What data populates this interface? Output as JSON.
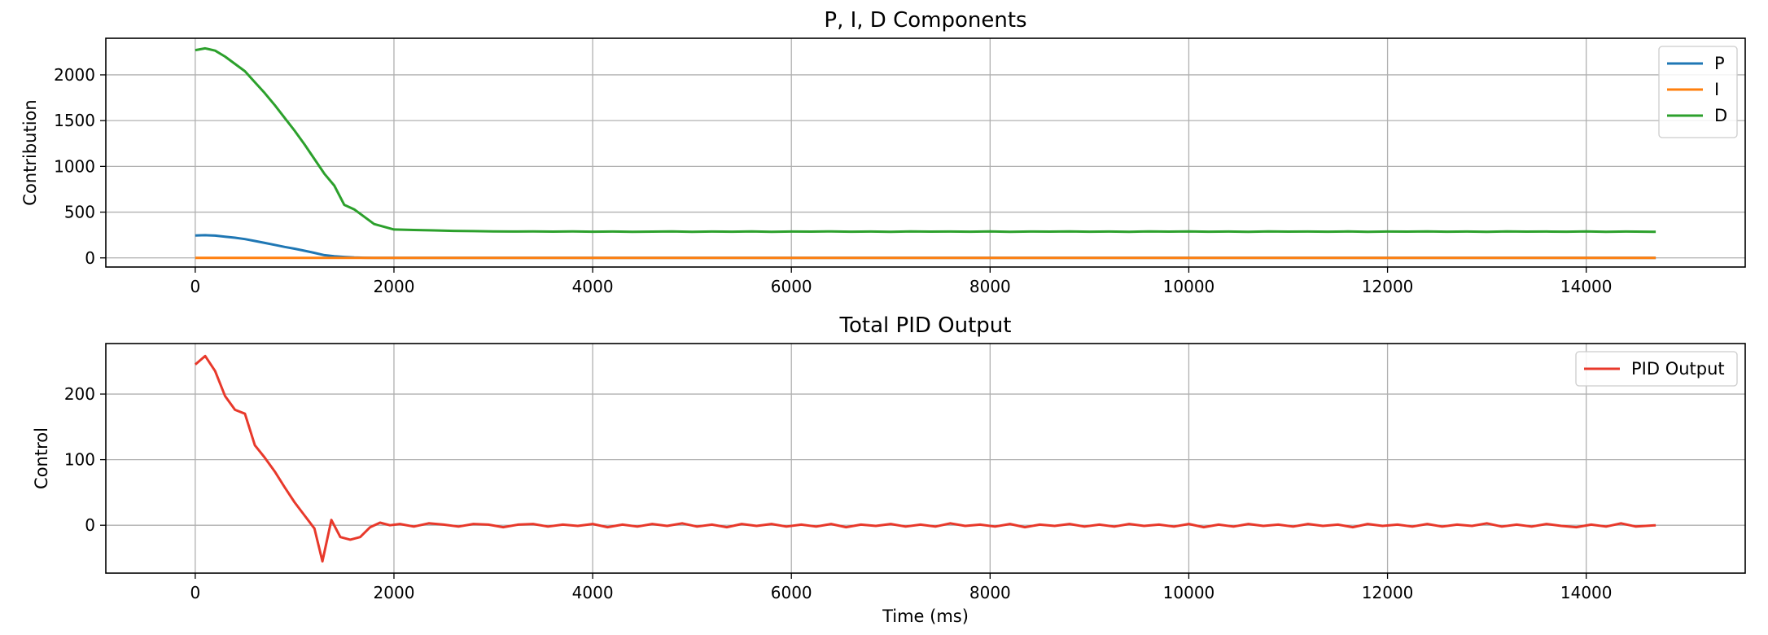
{
  "chart_data": [
    {
      "type": "line",
      "title": "P, I, D Components",
      "xlabel": "",
      "ylabel": "Contribution",
      "xlim": [
        -900,
        15600
      ],
      "ylim": [
        -100,
        2400
      ],
      "xticks": [
        0,
        2000,
        4000,
        6000,
        8000,
        10000,
        12000,
        14000
      ],
      "yticks": [
        0,
        500,
        1000,
        1500,
        2000
      ],
      "grid": true,
      "legend": "top-right",
      "series": [
        {
          "name": "P",
          "color": "#1f77b4",
          "x": [
            0,
            100,
            200,
            300,
            400,
            500,
            600,
            700,
            800,
            900,
            1000,
            1100,
            1200,
            1300,
            1400,
            1500,
            1600,
            1700,
            1800,
            2000,
            4000,
            6000,
            8000,
            10000,
            12000,
            14000,
            14700
          ],
          "y": [
            245,
            248,
            243,
            232,
            220,
            205,
            185,
            163,
            142,
            120,
            100,
            78,
            55,
            30,
            18,
            10,
            4,
            1,
            0,
            0,
            0,
            0,
            0,
            0,
            0,
            0,
            0
          ]
        },
        {
          "name": "I",
          "color": "#ff7f0e",
          "x": [
            0,
            2000,
            4000,
            6000,
            8000,
            10000,
            12000,
            14000,
            14700
          ],
          "y": [
            0,
            0,
            0,
            0,
            0,
            0,
            0,
            0,
            0
          ]
        },
        {
          "name": "D",
          "color": "#2ca02c",
          "x": [
            0,
            100,
            200,
            300,
            400,
            500,
            600,
            700,
            800,
            900,
            1000,
            1100,
            1200,
            1300,
            1400,
            1500,
            1600,
            1700,
            1800,
            2000,
            2200,
            2400,
            2600,
            2800,
            3000,
            3200,
            3400,
            3600,
            3800,
            4000,
            4200,
            4400,
            4600,
            4800,
            5000,
            5200,
            5400,
            5600,
            5800,
            6000,
            6200,
            6400,
            6600,
            6800,
            7000,
            7200,
            7400,
            7600,
            7800,
            8000,
            8200,
            8400,
            8600,
            8800,
            9000,
            9200,
            9400,
            9600,
            9800,
            10000,
            10200,
            10400,
            10600,
            10800,
            11000,
            11200,
            11400,
            11600,
            11800,
            12000,
            12200,
            12400,
            12600,
            12800,
            13000,
            13200,
            13400,
            13600,
            13800,
            14000,
            14200,
            14400,
            14700
          ],
          "y": [
            2270,
            2290,
            2265,
            2200,
            2120,
            2040,
            1920,
            1800,
            1670,
            1530,
            1390,
            1240,
            1080,
            920,
            790,
            580,
            530,
            450,
            370,
            310,
            305,
            300,
            295,
            292,
            290,
            288,
            290,
            287,
            289,
            286,
            288,
            285,
            287,
            289,
            285,
            288,
            286,
            289,
            285,
            288,
            287,
            290,
            286,
            288,
            285,
            289,
            287,
            288,
            286,
            289,
            285,
            288,
            287,
            290,
            286,
            288,
            285,
            289,
            287,
            290,
            286,
            288,
            285,
            289,
            287,
            288,
            286,
            289,
            285,
            288,
            287,
            290,
            286,
            288,
            285,
            289,
            287,
            288,
            286,
            289,
            285,
            288,
            285
          ]
        }
      ]
    },
    {
      "type": "line",
      "title": "Total PID Output",
      "xlabel": "Time (ms)",
      "ylabel": "Control",
      "xlim": [
        -900,
        15600
      ],
      "ylim": [
        -73,
        277
      ],
      "xticks": [
        0,
        2000,
        4000,
        6000,
        8000,
        10000,
        12000,
        14000
      ],
      "yticks": [
        0,
        100,
        200
      ],
      "grid": true,
      "legend": "top-right",
      "series": [
        {
          "name": "PID Output",
          "color": "#e8392b",
          "x": [
            0,
            100,
            200,
            300,
            400,
            500,
            600,
            700,
            800,
            900,
            1000,
            1100,
            1200,
            1280,
            1370,
            1460,
            1560,
            1660,
            1760,
            1860,
            1960,
            2060,
            2200,
            2350,
            2500,
            2650,
            2800,
            2950,
            3100,
            3250,
            3400,
            3550,
            3700,
            3850,
            4000,
            4150,
            4300,
            4450,
            4600,
            4750,
            4900,
            5050,
            5200,
            5350,
            5500,
            5650,
            5800,
            5950,
            6100,
            6250,
            6400,
            6550,
            6700,
            6850,
            7000,
            7150,
            7300,
            7450,
            7600,
            7750,
            7900,
            8050,
            8200,
            8350,
            8500,
            8650,
            8800,
            8950,
            9100,
            9250,
            9400,
            9550,
            9700,
            9850,
            10000,
            10150,
            10300,
            10450,
            10600,
            10750,
            10900,
            11050,
            11200,
            11350,
            11500,
            11650,
            11800,
            11950,
            12100,
            12250,
            12400,
            12550,
            12700,
            12850,
            13000,
            13150,
            13300,
            13450,
            13600,
            13750,
            13900,
            14050,
            14200,
            14350,
            14500,
            14700
          ],
          "y": [
            245,
            258,
            235,
            197,
            176,
            170,
            122,
            103,
            82,
            58,
            35,
            15,
            -5,
            -55,
            8,
            -18,
            -22,
            -18,
            -3,
            4,
            0,
            2,
            -2,
            3,
            1,
            -2,
            2,
            1,
            -3,
            1,
            2,
            -2,
            1,
            -1,
            2,
            -3,
            1,
            -2,
            2,
            -1,
            3,
            -2,
            1,
            -3,
            2,
            -1,
            2,
            -2,
            1,
            -2,
            2,
            -3,
            1,
            -1,
            2,
            -2,
            1,
            -2,
            3,
            -1,
            1,
            -2,
            2,
            -3,
            1,
            -1,
            2,
            -2,
            1,
            -2,
            2,
            -1,
            1,
            -2,
            2,
            -3,
            1,
            -2,
            2,
            -1,
            1,
            -2,
            2,
            -1,
            1,
            -3,
            2,
            -1,
            1,
            -2,
            2,
            -2,
            1,
            -1,
            3,
            -2,
            1,
            -2,
            2,
            -1,
            -3,
            1,
            -2,
            3,
            -2,
            0
          ]
        }
      ]
    }
  ]
}
